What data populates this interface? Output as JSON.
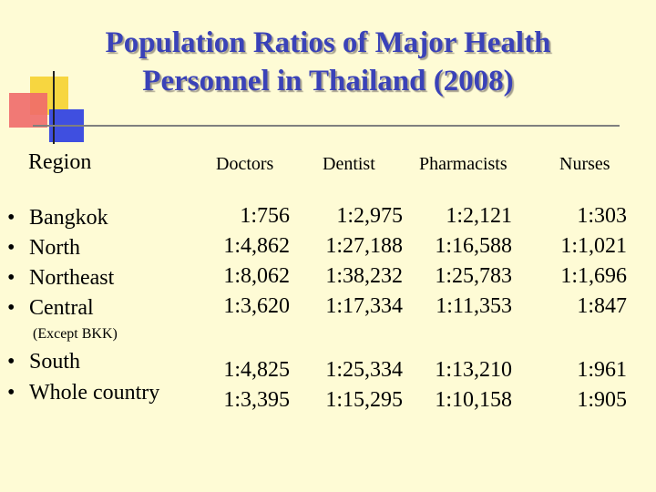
{
  "slide": {
    "title_line1": "Population Ratios of Major Health",
    "title_line2": "Personnel in Thailand (2008)"
  },
  "table": {
    "headers": {
      "region": "Region",
      "doctors": "Doctors",
      "dentist": "Dentist",
      "pharmacists": "Pharmacists",
      "nurses": "Nurses"
    },
    "bullet": "•",
    "central_note": "(Except BKK)",
    "rows": [
      {
        "region": "Bangkok",
        "doctors": "1:756",
        "dentist": "1:2,975",
        "pharmacists": "1:2,121",
        "nurses": "1:303"
      },
      {
        "region": "North",
        "doctors": "1:4,862",
        "dentist": "1:27,188",
        "pharmacists": "1:16,588",
        "nurses": "1:1,021"
      },
      {
        "region": "Northeast",
        "doctors": "1:8,062",
        "dentist": "1:38,232",
        "pharmacists": "1:25,783",
        "nurses": "1:1,696"
      },
      {
        "region": "Central",
        "doctors": "1:3,620",
        "dentist": "1:17,334",
        "pharmacists": "1:11,353",
        "nurses": "1:847"
      },
      {
        "region": "South",
        "doctors": "1:4,825",
        "dentist": "1:25,334",
        "pharmacists": "1:13,210",
        "nurses": "1:961"
      },
      {
        "region": "Whole country",
        "doctors": "1:3,395",
        "dentist": "1:15,295",
        "pharmacists": "1:10,158",
        "nurses": "1:905"
      }
    ]
  }
}
